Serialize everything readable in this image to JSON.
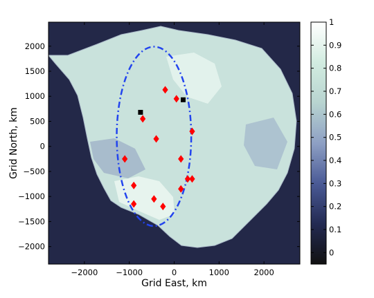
{
  "chart_data": {
    "type": "scatter",
    "xlabel": "Grid East, km",
    "ylabel": "Grid North, km",
    "xlim": [
      -2800,
      2800
    ],
    "ylim": [
      -2350,
      2480
    ],
    "xticks": [
      -2000,
      -1000,
      0,
      1000,
      2000
    ],
    "yticks": [
      -2000,
      -1500,
      -1000,
      -500,
      0,
      500,
      1000,
      1500,
      2000
    ],
    "xtick_labels": [
      "−2000",
      "−1000",
      "0",
      "1000",
      "2000"
    ],
    "ytick_labels": [
      "−2000",
      "−1500",
      "−1000",
      "−500",
      "0",
      "500",
      "1000",
      "1500",
      "2000"
    ],
    "colorbar": {
      "range": [
        -0.05,
        1
      ],
      "ticks": [
        0,
        0.1,
        0.2,
        0.3,
        0.4,
        0.5,
        0.6,
        0.7,
        0.8,
        0.9,
        1
      ],
      "tick_labels": [
        "0",
        "0.1",
        "0.2",
        "0.3",
        "0.4",
        "0.5",
        "0.6",
        "0.7",
        "0.8",
        "0.9",
        "1"
      ],
      "colormap": [
        "#111111",
        "#232a52",
        "#4a5a96",
        "#8ea0c4",
        "#b8d4d0",
        "#d2ece0",
        "#ffffff"
      ]
    },
    "background_color": "#232848",
    "series": [
      {
        "marker": "diamond",
        "color": "#ff0000",
        "points": [
          {
            "x": -200,
            "y": 1130
          },
          {
            "x": 50,
            "y": 950
          },
          {
            "x": -700,
            "y": 550
          },
          {
            "x": 400,
            "y": 300
          },
          {
            "x": -400,
            "y": 150
          },
          {
            "x": -1100,
            "y": -250
          },
          {
            "x": 150,
            "y": -250
          },
          {
            "x": 300,
            "y": -650
          },
          {
            "x": 400,
            "y": -650
          },
          {
            "x": 150,
            "y": -850
          },
          {
            "x": -900,
            "y": -780
          },
          {
            "x": -450,
            "y": -1050
          },
          {
            "x": -900,
            "y": -1150
          },
          {
            "x": -250,
            "y": -1200
          }
        ]
      },
      {
        "marker": "square",
        "color": "#000000",
        "points": [
          {
            "x": 200,
            "y": 930
          },
          {
            "x": -750,
            "y": 680
          }
        ]
      }
    ],
    "ellipse": {
      "cx": -450,
      "cy": 200,
      "rx": 830,
      "ry": 1790,
      "color": "#2244ee",
      "style": "dash-dot"
    }
  }
}
